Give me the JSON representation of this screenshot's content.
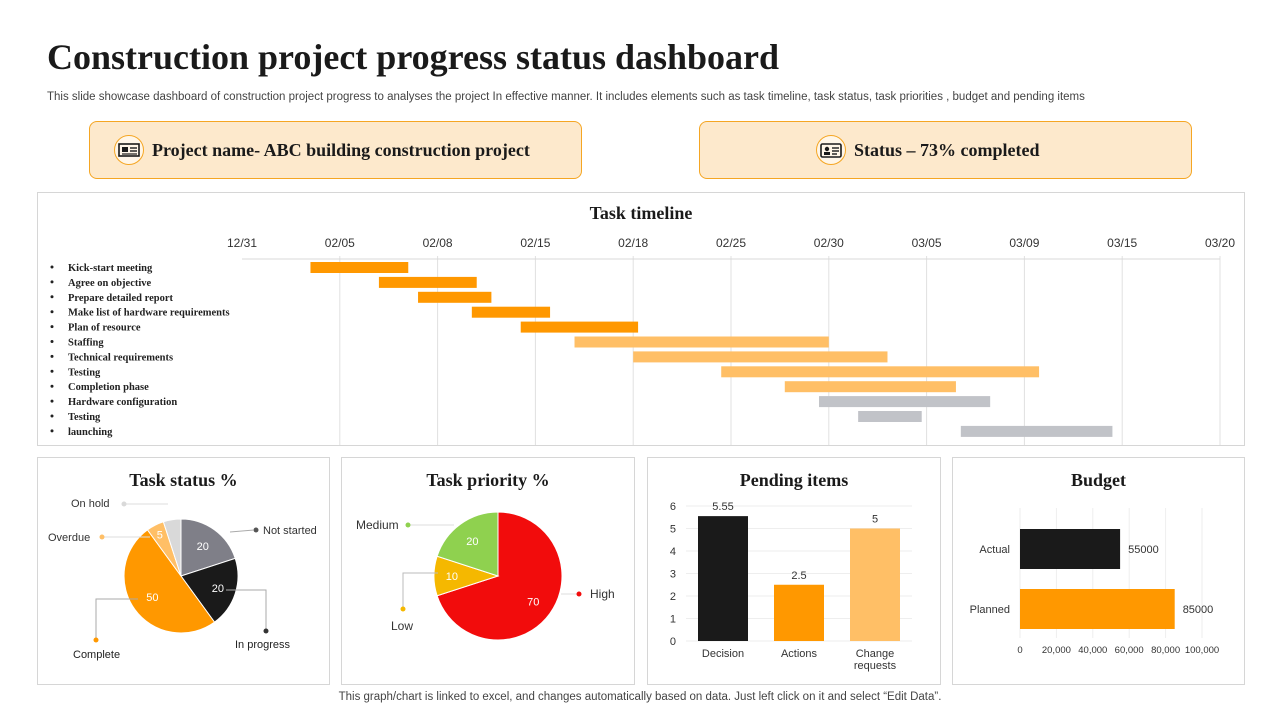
{
  "header": {
    "title": "Construction project progress status dashboard",
    "subtitle": "This slide showcase dashboard of construction project progress to analyses the project In effective manner. It includes elements such as task timeline, task status, task priorities , budget and pending items"
  },
  "project_box": {
    "text": "Project name- ABC building construction project",
    "icon": "blueprint-icon"
  },
  "status_box": {
    "text": "Status – 73% completed",
    "icon": "id-card-icon"
  },
  "footer": {
    "note": "This graph/chart is linked to excel,  and changes automatically based on data. Just left click on it and select “Edit Data”."
  },
  "colors": {
    "orange": "#ff9800",
    "light_orange": "#ffbf66",
    "gray": "#c1c3c8",
    "black": "#1a1a1a",
    "dark_gray": "#7f7f88",
    "light_gray": "#d9d9d9",
    "red": "#f20c0c",
    "yellow": "#f5b800",
    "green": "#8fd14f"
  },
  "chart_data": [
    {
      "type": "gantt",
      "title": "Task timeline",
      "x_ticks": [
        "12/31",
        "02/05",
        "02/08",
        "02/15",
        "02/18",
        "02/25",
        "02/30",
        "03/05",
        "03/09",
        "03/15",
        "03/20"
      ],
      "tasks": [
        {
          "name": "Kick-start meeting",
          "start": 0.7,
          "end": 1.7,
          "status": "done"
        },
        {
          "name": "Agree on objective",
          "start": 1.4,
          "end": 2.4,
          "status": "done"
        },
        {
          "name": "Prepare detailed report",
          "start": 1.8,
          "end": 2.55,
          "status": "done"
        },
        {
          "name": "Make list of hardware requirements",
          "start": 2.35,
          "end": 3.15,
          "status": "done"
        },
        {
          "name": "Plan of resource",
          "start": 2.85,
          "end": 4.05,
          "status": "done"
        },
        {
          "name": "Staffing",
          "start": 3.4,
          "end": 6.0,
          "status": "in-progress"
        },
        {
          "name": "Technical requirements",
          "start": 4.0,
          "end": 6.6,
          "status": "in-progress"
        },
        {
          "name": "Testing",
          "start": 4.9,
          "end": 8.15,
          "status": "in-progress"
        },
        {
          "name": "Completion phase",
          "start": 5.55,
          "end": 7.3,
          "status": "in-progress"
        },
        {
          "name": "Hardware configuration",
          "start": 5.9,
          "end": 7.65,
          "status": "pending"
        },
        {
          "name": "Testing",
          "start": 6.3,
          "end": 6.95,
          "status": "pending"
        },
        {
          "name": "launching",
          "start": 7.35,
          "end": 8.9,
          "status": "pending"
        }
      ]
    },
    {
      "type": "pie",
      "title": "Task status %",
      "slices": [
        {
          "label": "Not started",
          "value": 20,
          "value_label": "20"
        },
        {
          "label": "In progress",
          "value": 20,
          "value_label": "20"
        },
        {
          "label": "Complete",
          "value": 50,
          "value_label": "50"
        },
        {
          "label": "Overdue",
          "value": 5,
          "value_label": "5"
        },
        {
          "label": "On hold",
          "value": 5,
          "value_label": ""
        }
      ]
    },
    {
      "type": "pie",
      "title": "Task priority %",
      "slices": [
        {
          "label": "High",
          "value": 70,
          "value_label": "70"
        },
        {
          "label": "Low",
          "value": 10,
          "value_label": "10"
        },
        {
          "label": "Medium",
          "value": 20,
          "value_label": "20"
        }
      ]
    },
    {
      "type": "bar",
      "title": "Pending items",
      "categories": [
        "Decision",
        "Actions",
        "Change requests"
      ],
      "values": [
        5.55,
        2.5,
        5
      ],
      "value_labels": [
        "5.55",
        "2.5",
        "5"
      ],
      "y_ticks": [
        "0",
        "1",
        "2",
        "3",
        "4",
        "5",
        "6"
      ],
      "ylim": [
        0,
        6
      ]
    },
    {
      "type": "bar-horizontal",
      "title": "Budget",
      "categories": [
        "Actual",
        "Planned"
      ],
      "values": [
        55000,
        85000
      ],
      "value_labels": [
        "55000",
        "85000"
      ],
      "x_ticks": [
        "0",
        "20,000",
        "40,000",
        "60,000",
        "80,000",
        "100,000"
      ],
      "xlim": [
        0,
        100000
      ]
    }
  ]
}
